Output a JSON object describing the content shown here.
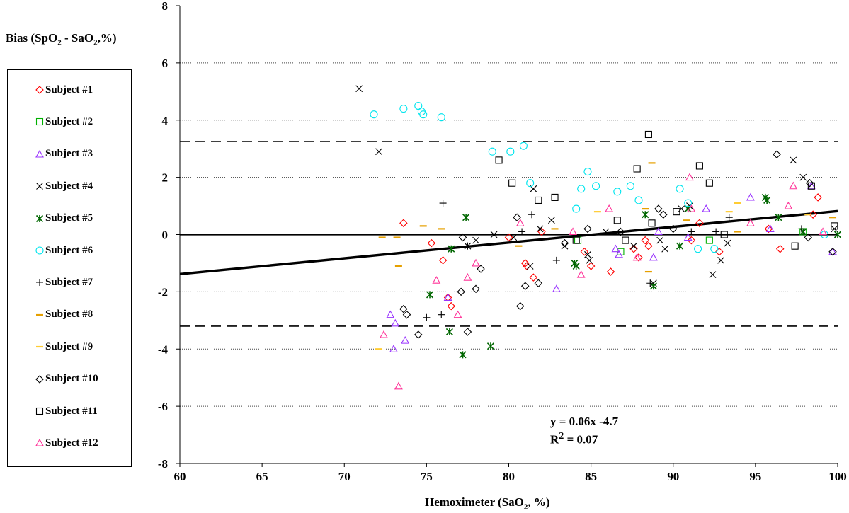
{
  "chart_data": {
    "type": "scatter",
    "ylabel_html": "Bias (SpO<sub>2</sub> - SaO<sub>2</sub>,%)",
    "xlabel_html": "Hemoximeter (SaO<sub>2</sub>, %)",
    "xlim": [
      60,
      100
    ],
    "ylim": [
      -8,
      8
    ],
    "xticks": [
      60,
      65,
      70,
      75,
      80,
      85,
      90,
      95,
      100
    ],
    "yticks": [
      -8,
      -6,
      -4,
      -2,
      0,
      2,
      4,
      6,
      8
    ],
    "grid": "horizontal dotted",
    "legend_position": "left",
    "reference_lines": {
      "zero": 0,
      "upper_limit": 3.25,
      "lower_limit": -3.2
    },
    "regression": {
      "slope": 0.055,
      "intercept": -4.68
    },
    "equation_line1": "y = 0.06x  -4.7",
    "equation_line2_html": "R<sup>2</sup> = 0.07",
    "series": [
      {
        "name": "Subject #1",
        "marker": "diamond",
        "color": "#ff0000",
        "points": [
          [
            73.6,
            0.4
          ],
          [
            75.3,
            -0.3
          ],
          [
            76,
            -0.9
          ],
          [
            76.5,
            -2.5
          ],
          [
            76.3,
            -2.2
          ],
          [
            80,
            -0.1
          ],
          [
            81,
            -1
          ],
          [
            81.1,
            -1.1
          ],
          [
            81.5,
            -1.5
          ],
          [
            82,
            0.1
          ],
          [
            84.6,
            -0.6
          ],
          [
            85,
            -1.1
          ],
          [
            86.2,
            -1.3
          ],
          [
            87.6,
            -0.5
          ],
          [
            87.9,
            -0.8
          ],
          [
            88.3,
            -0.2
          ],
          [
            88.5,
            -0.4
          ],
          [
            91.1,
            -0.2
          ],
          [
            91.6,
            0.4
          ],
          [
            92.8,
            -0.6
          ],
          [
            95.8,
            0.2
          ],
          [
            96.5,
            -0.5
          ],
          [
            98.5,
            0.7
          ],
          [
            98.8,
            1.3
          ]
        ]
      },
      {
        "name": "Subject #2",
        "marker": "square",
        "color": "#00b000",
        "points": [
          [
            84.2,
            -0.2
          ],
          [
            86.8,
            -0.6
          ],
          [
            92.2,
            -0.2
          ],
          [
            97.9,
            0.1
          ]
        ]
      },
      {
        "name": "Subject #3",
        "marker": "triangle",
        "color": "#9933ff",
        "points": [
          [
            72.8,
            -2.8
          ],
          [
            73,
            -4
          ],
          [
            73.1,
            -3.1
          ],
          [
            73.7,
            -3.7
          ],
          [
            76.3,
            -2.2
          ],
          [
            82.9,
            -1.9
          ],
          [
            86.5,
            -0.5
          ],
          [
            86.7,
            -0.7
          ],
          [
            88.8,
            -0.8
          ],
          [
            89.1,
            0.1
          ],
          [
            90.9,
            -0.1
          ],
          [
            92,
            0.9
          ],
          [
            94.7,
            1.3
          ],
          [
            95.9,
            0.2
          ],
          [
            98.4,
            1.7
          ],
          [
            99.7,
            -0.6
          ]
        ]
      },
      {
        "name": "Subject #4",
        "marker": "x",
        "color": "#000000",
        "points": [
          [
            70.9,
            5.1
          ],
          [
            72.1,
            2.9
          ],
          [
            77.5,
            -0.4
          ],
          [
            78,
            -0.2
          ],
          [
            79.1,
            0
          ],
          [
            80.3,
            -0.1
          ],
          [
            81.3,
            -1.1
          ],
          [
            81.5,
            1.6
          ],
          [
            81.9,
            0.2
          ],
          [
            82.6,
            0.5
          ],
          [
            83.4,
            -0.4
          ],
          [
            84.8,
            -0.7
          ],
          [
            84.9,
            -0.9
          ],
          [
            85.9,
            0.1
          ],
          [
            87.6,
            -0.4
          ],
          [
            88.8,
            -1.7
          ],
          [
            89.2,
            -0.2
          ],
          [
            89.5,
            -0.5
          ],
          [
            90.5,
            0.9
          ],
          [
            91,
            1
          ],
          [
            92.4,
            -1.4
          ],
          [
            92.9,
            -0.9
          ],
          [
            93.3,
            -0.3
          ],
          [
            97.3,
            2.6
          ],
          [
            97.9,
            2
          ],
          [
            99.8,
            0.2
          ]
        ]
      },
      {
        "name": "Subject #5",
        "marker": "asterisk",
        "color": "#006600",
        "points": [
          [
            75.2,
            -2.1
          ],
          [
            76.4,
            -3.4
          ],
          [
            76.5,
            -0.5
          ],
          [
            77.2,
            -4.2
          ],
          [
            77.4,
            0.6
          ],
          [
            78.9,
            -3.9
          ],
          [
            84,
            -1
          ],
          [
            84.1,
            -1.1
          ],
          [
            88.3,
            0.7
          ],
          [
            88.8,
            -1.8
          ],
          [
            90.4,
            -0.4
          ],
          [
            90.9,
            0.9
          ],
          [
            95.6,
            1.3
          ],
          [
            95.7,
            1.2
          ],
          [
            96.4,
            0.6
          ],
          [
            97.9,
            0.1
          ],
          [
            100,
            0
          ]
        ]
      },
      {
        "name": "Subject #6",
        "marker": "circle",
        "color": "#00e5ee",
        "points": [
          [
            71.8,
            4.2
          ],
          [
            73.6,
            4.4
          ],
          [
            74.5,
            4.5
          ],
          [
            74.7,
            4.3
          ],
          [
            74.8,
            4.2
          ],
          [
            75.9,
            4.1
          ],
          [
            79,
            2.9
          ],
          [
            80.1,
            2.9
          ],
          [
            80.9,
            3.1
          ],
          [
            81.3,
            1.8
          ],
          [
            84.1,
            0.9
          ],
          [
            84.4,
            1.6
          ],
          [
            84.8,
            2.2
          ],
          [
            85.3,
            1.7
          ],
          [
            86.6,
            1.5
          ],
          [
            87.4,
            1.7
          ],
          [
            87.9,
            1.2
          ],
          [
            90.4,
            1.6
          ],
          [
            90.9,
            1.1
          ],
          [
            91.5,
            -0.5
          ],
          [
            92.5,
            -0.5
          ],
          [
            99.2,
            0
          ]
        ]
      },
      {
        "name": "Subject #7",
        "marker": "plus",
        "color": "#000000",
        "points": [
          [
            75,
            -2.9
          ],
          [
            75.9,
            -2.8
          ],
          [
            76,
            1.1
          ],
          [
            77.5,
            -0.4
          ],
          [
            80.8,
            0.1
          ],
          [
            81.4,
            0.7
          ],
          [
            82.9,
            -0.9
          ],
          [
            88.6,
            -1.7
          ],
          [
            91.1,
            0.1
          ],
          [
            92.6,
            0.1
          ],
          [
            93.4,
            0.6
          ],
          [
            97.8,
            0.2
          ]
        ]
      },
      {
        "name": "Subject #8",
        "marker": "dash",
        "color": "#e6a000",
        "points": [
          [
            72.3,
            -0.1
          ],
          [
            73.2,
            -0.1
          ],
          [
            73.3,
            -1.1
          ],
          [
            74.8,
            0.3
          ],
          [
            75.9,
            0.2
          ],
          [
            80.6,
            -0.4
          ],
          [
            82.8,
            0.2
          ],
          [
            88.3,
            0.9
          ],
          [
            88.5,
            -1.3
          ],
          [
            88.7,
            2.5
          ],
          [
            90.8,
            0.5
          ],
          [
            93.9,
            0.1
          ],
          [
            99.7,
            0.6
          ]
        ]
      },
      {
        "name": "Subject #9",
        "marker": "dash",
        "color": "#ffcc33",
        "points": [
          [
            72.1,
            -4
          ],
          [
            85.4,
            0.8
          ],
          [
            93.4,
            0.8
          ],
          [
            93.9,
            1.1
          ],
          [
            98.2,
            0.7
          ]
        ]
      },
      {
        "name": "Subject #10",
        "marker": "diamond",
        "color": "#000000",
        "points": [
          [
            73.6,
            -2.6
          ],
          [
            73.8,
            -2.8
          ],
          [
            74.5,
            -3.5
          ],
          [
            77.1,
            -2
          ],
          [
            77.2,
            -0.1
          ],
          [
            77.5,
            -3.4
          ],
          [
            78,
            -1.9
          ],
          [
            78.3,
            -1.2
          ],
          [
            80.5,
            0.6
          ],
          [
            80.7,
            -2.5
          ],
          [
            81,
            -1.8
          ],
          [
            81.8,
            -1.7
          ],
          [
            83.4,
            -0.3
          ],
          [
            84.8,
            0.2
          ],
          [
            86.8,
            0.1
          ],
          [
            89.1,
            0.9
          ],
          [
            89.4,
            0.7
          ],
          [
            90,
            0.2
          ],
          [
            96.3,
            2.8
          ],
          [
            98.2,
            -0.1
          ],
          [
            98.3,
            1.8
          ],
          [
            99.7,
            -0.6
          ]
        ]
      },
      {
        "name": "Subject #11",
        "marker": "square",
        "color": "#000000",
        "points": [
          [
            79.4,
            2.6
          ],
          [
            80.2,
            1.8
          ],
          [
            81.8,
            1.2
          ],
          [
            82.8,
            1.3
          ],
          [
            84.1,
            -0.2
          ],
          [
            86.6,
            0.5
          ],
          [
            87.1,
            -0.2
          ],
          [
            87.8,
            2.3
          ],
          [
            88.5,
            3.5
          ],
          [
            88.7,
            0.4
          ],
          [
            90.2,
            0.8
          ],
          [
            91.6,
            2.4
          ],
          [
            92.2,
            1.8
          ],
          [
            93.1,
            0
          ],
          [
            97.4,
            -0.4
          ],
          [
            98.4,
            1.7
          ],
          [
            99.8,
            0.3
          ]
        ]
      },
      {
        "name": "Subject #12",
        "marker": "triangle",
        "color": "#ff3399",
        "points": [
          [
            72.4,
            -3.5
          ],
          [
            73.3,
            -5.3
          ],
          [
            75.6,
            -1.6
          ],
          [
            76.9,
            -2.8
          ],
          [
            77.5,
            -1.5
          ],
          [
            78,
            -1
          ],
          [
            80.7,
            0.4
          ],
          [
            83.9,
            0.1
          ],
          [
            84.4,
            -1.4
          ],
          [
            86.1,
            0.9
          ],
          [
            87.8,
            -0.8
          ],
          [
            91,
            2
          ],
          [
            91.1,
            0.9
          ],
          [
            94.7,
            0.4
          ],
          [
            97,
            1
          ],
          [
            97.3,
            1.7
          ],
          [
            99.1,
            0.1
          ]
        ]
      }
    ]
  }
}
